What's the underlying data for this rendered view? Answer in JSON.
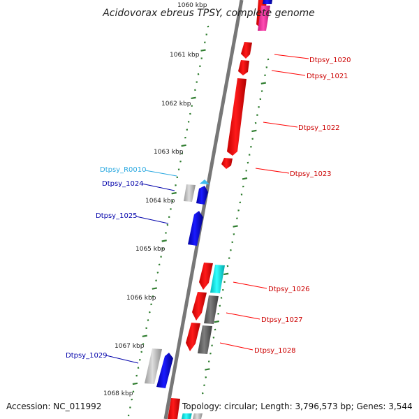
{
  "title": "Acidovorax ebreus TPSY, complete genome",
  "accession": "Accession: NC_011992",
  "topology": "Topology: circular; Length: 3,796,573 bp; Genes: 3,544",
  "ruler": [
    "1060 kbp",
    "1061 kbp",
    "1062 kbp",
    "1063 kbp",
    "1064 kbp",
    "1065 kbp",
    "1066 kbp",
    "1067 kbp",
    "1068 kbp"
  ],
  "colors": {
    "backbone": "#7a7a7a",
    "tick": "#2f7d2f",
    "red": "#ff0000",
    "blue": "#0000e6",
    "cyan": "#00e5e5",
    "rna": "#3fbcef",
    "grey": "#b9b9b9",
    "darkgrey": "#666666",
    "pink": "#ff2a9f",
    "red_label": "#cc0000",
    "blue_label": "#0000aa",
    "rna_label": "#29a8e0"
  },
  "labels": {
    "dtpsy_1020": "Dtpsy_1020",
    "dtpsy_1021": "Dtpsy_1021",
    "dtpsy_1022": "Dtpsy_1022",
    "dtpsy_1023": "Dtpsy_1023",
    "dtpsy_r0010": "Dtpsy_R0010",
    "dtpsy_1024": "Dtpsy_1024",
    "dtpsy_1025": "Dtpsy_1025",
    "dtpsy_1026": "Dtpsy_1026",
    "dtpsy_1027": "Dtpsy_1027",
    "dtpsy_1028": "Dtpsy_1028",
    "dtpsy_1029": "Dtpsy_1029"
  }
}
